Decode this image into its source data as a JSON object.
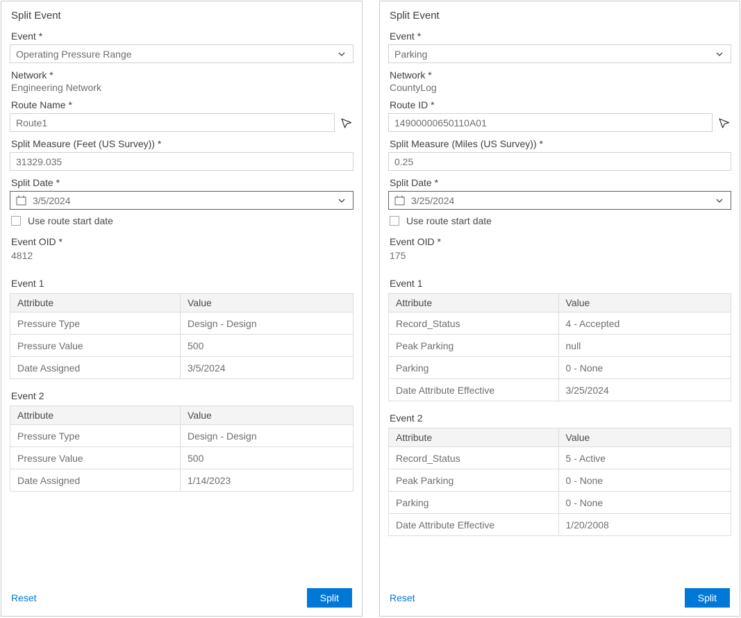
{
  "colors": {
    "accent": "#0078d7",
    "panel_border": "#c9c9c9",
    "input_border": "#d1d1d1",
    "date_input_border": "#5f5f5f",
    "table_border": "#dcdcdc",
    "table_header_bg": "#f4f4f4",
    "text_dark": "#3f3f3f",
    "text_gray": "#6e6e6e"
  },
  "icons": {
    "dropdown": "chevron-down-icon",
    "date": "calendar-icon",
    "route_picker": "cursor-arrow-icon"
  },
  "panels": [
    {
      "title": "Split Event",
      "event": {
        "label": "Event *",
        "value": "Operating Pressure Range"
      },
      "network": {
        "label": "Network *",
        "value": "Engineering Network"
      },
      "route": {
        "label": "Route Name *",
        "value": "Route1"
      },
      "measure": {
        "label": "Split Measure (Feet (US Survey)) *",
        "value": "31329.035"
      },
      "split_date": {
        "label": "Split Date *",
        "value": "3/5/2024"
      },
      "checkbox_label": "Use route start date",
      "event_oid": {
        "label": "Event OID *",
        "value": "4812"
      },
      "tables": [
        {
          "title": "Event 1",
          "columns": [
            "Attribute",
            "Value"
          ],
          "rows": [
            [
              "Pressure Type",
              "Design - Design"
            ],
            [
              "Pressure Value",
              "500"
            ],
            [
              "Date Assigned",
              "3/5/2024"
            ]
          ]
        },
        {
          "title": "Event 2",
          "columns": [
            "Attribute",
            "Value"
          ],
          "rows": [
            [
              "Pressure Type",
              "Design - Design"
            ],
            [
              "Pressure Value",
              "500"
            ],
            [
              "Date Assigned",
              "1/14/2023"
            ]
          ]
        }
      ],
      "reset_label": "Reset",
      "split_label": "Split"
    },
    {
      "title": "Split Event",
      "event": {
        "label": "Event *",
        "value": "Parking"
      },
      "network": {
        "label": "Network *",
        "value": "CountyLog"
      },
      "route": {
        "label": "Route ID *",
        "value": "14900000650110A01"
      },
      "measure": {
        "label": "Split Measure (Miles (US Survey)) *",
        "value": "0.25"
      },
      "split_date": {
        "label": "Split Date *",
        "value": "3/25/2024"
      },
      "checkbox_label": "Use route start date",
      "event_oid": {
        "label": "Event OID *",
        "value": "175"
      },
      "tables": [
        {
          "title": "Event 1",
          "columns": [
            "Attribute",
            "Value"
          ],
          "rows": [
            [
              "Record_Status",
              "4 - Accepted"
            ],
            [
              "Peak Parking",
              "null"
            ],
            [
              "Parking",
              "0 - None"
            ],
            [
              "Date Attribute Effective",
              "3/25/2024"
            ]
          ]
        },
        {
          "title": "Event 2",
          "columns": [
            "Attribute",
            "Value"
          ],
          "rows": [
            [
              "Record_Status",
              "5 - Active"
            ],
            [
              "Peak Parking",
              "0 - None"
            ],
            [
              "Parking",
              "0 - None"
            ],
            [
              "Date Attribute Effective",
              "1/20/2008"
            ]
          ]
        }
      ],
      "reset_label": "Reset",
      "split_label": "Split"
    }
  ]
}
